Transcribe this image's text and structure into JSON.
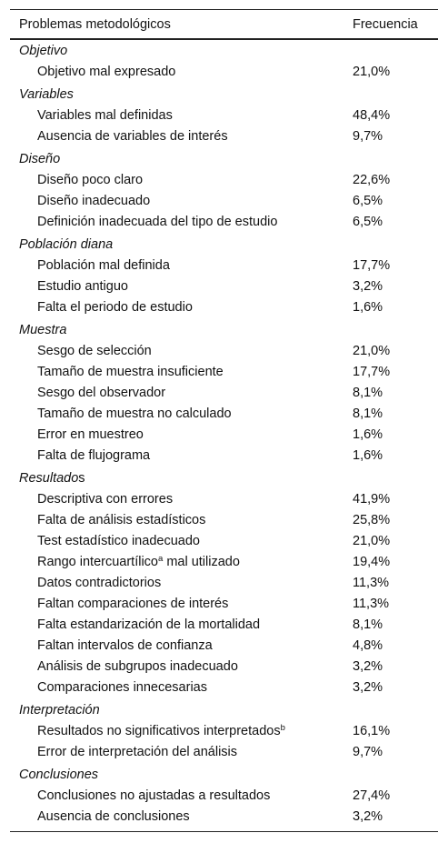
{
  "table": {
    "header": [
      "Problemas metodológicos",
      "Frecuencia"
    ],
    "groups": [
      {
        "title": [
          "Objetivo"
        ],
        "rows": [
          {
            "label": [
              "Objetivo mal expresado"
            ],
            "value": "21,0%"
          }
        ]
      },
      {
        "title": [
          "Variables"
        ],
        "rows": [
          {
            "label": [
              "Variables mal definidas"
            ],
            "value": "48,4%"
          },
          {
            "label": [
              "Ausencia de variables de interés"
            ],
            "value": "9,7%"
          }
        ]
      },
      {
        "title": [
          "Diseño"
        ],
        "rows": [
          {
            "label": [
              "Diseño poco claro"
            ],
            "value": "22,6%"
          },
          {
            "label": [
              "Diseño inadecuado"
            ],
            "value": "6,5%"
          },
          {
            "label": [
              "Definición inadecuada del tipo de estudio"
            ],
            "value": "6,5%"
          }
        ]
      },
      {
        "title": [
          "Población diana"
        ],
        "rows": [
          {
            "label": [
              "Población mal definida"
            ],
            "value": "17,7%"
          },
          {
            "label": [
              "Estudio antiguo"
            ],
            "value": "3,2%"
          },
          {
            "label": [
              "Falta el periodo de estudio"
            ],
            "value": "1,6%"
          }
        ]
      },
      {
        "title": [
          "Muestra"
        ],
        "rows": [
          {
            "label": [
              "Sesgo de selección"
            ],
            "value": "21,0%"
          },
          {
            "label": [
              "Tamaño de muestra insuficiente"
            ],
            "value": "17,7%"
          },
          {
            "label": [
              "Sesgo del observador"
            ],
            "value": "8,1%"
          },
          {
            "label": [
              "Tamaño de muestra no calculado"
            ],
            "value": "8,1%"
          },
          {
            "label": [
              "Error en muestreo"
            ],
            "value": "1,6%"
          },
          {
            "label": [
              "Falta de flujograma"
            ],
            "value": "1,6%"
          }
        ]
      },
      {
        "title": [
          "Resultado",
          "s"
        ],
        "rows": [
          {
            "label": [
              "Descriptiva con errores"
            ],
            "value": "41,9%"
          },
          {
            "label": [
              "Falta de análisis estadísticos"
            ],
            "value": "25,8%"
          },
          {
            "label": [
              "Test estadístico inadecuado"
            ],
            "value": "21,0%"
          },
          {
            "label": [
              "Rango intercuartílico",
              "a",
              " mal utilizado"
            ],
            "value": "19,4%"
          },
          {
            "label": [
              "Datos contradictorios"
            ],
            "value": "11,3%"
          },
          {
            "label": [
              "Faltan comparaciones de interés"
            ],
            "value": "11,3%"
          },
          {
            "label": [
              "Falta estandarización de la mortalidad"
            ],
            "value": "8,1%"
          },
          {
            "label": [
              "Faltan intervalos de confianza"
            ],
            "value": "4,8%"
          },
          {
            "label": [
              "Análisis de subgrupos inadecuado"
            ],
            "value": "3,2%"
          },
          {
            "label": [
              "Comparaciones innecesarias"
            ],
            "value": "3,2%"
          }
        ]
      },
      {
        "title": [
          "Interpretación"
        ],
        "rows": [
          {
            "label": [
              "Resultados no significativos interpretados",
              "b"
            ],
            "value": "16,1%"
          },
          {
            "label": [
              "Error de interpretación del análisis"
            ],
            "value": "9,7%"
          }
        ]
      },
      {
        "title": [
          "Conclusiones"
        ],
        "rows": [
          {
            "label": [
              "Conclusiones no ajustadas a resultados"
            ],
            "value": "27,4%"
          },
          {
            "label": [
              "Ausencia de conclusiones"
            ],
            "value": "3,2%"
          }
        ]
      }
    ]
  }
}
